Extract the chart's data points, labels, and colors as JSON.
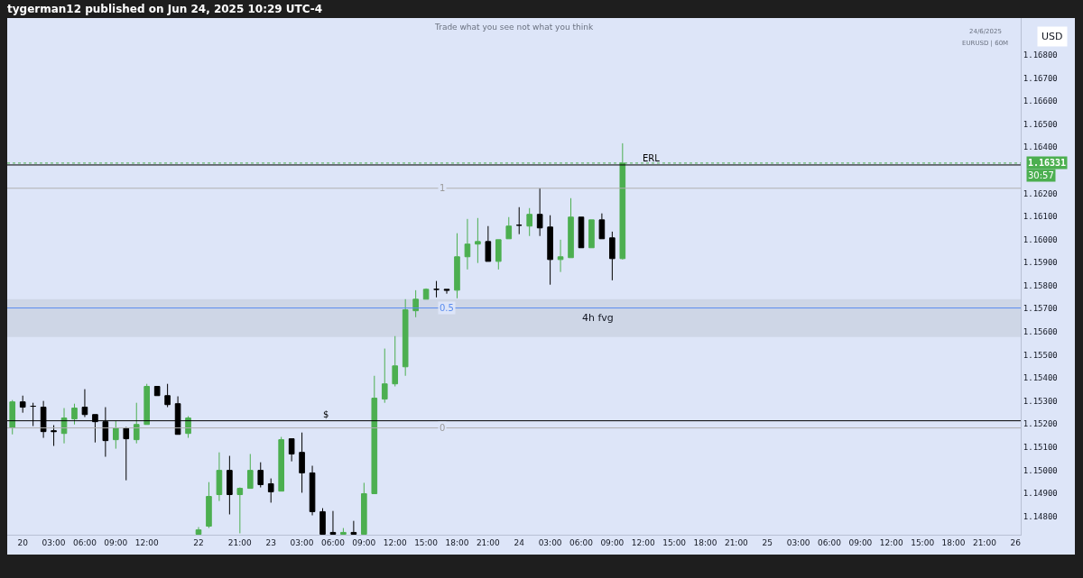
{
  "chart_data": {
    "type": "candlestick",
    "title": "tygerman12 published on Jun 24, 2025 10:29 UTC-4",
    "subtitle": "Trade what you see not what you think",
    "categories": [
      null,
      "20",
      null,
      null,
      "03:00",
      null,
      null,
      "06:00",
      null,
      null,
      "09:00",
      null,
      null,
      "12:00",
      null,
      null,
      null,
      null,
      "22",
      null,
      null,
      null,
      "21:00",
      null,
      null,
      "23",
      null,
      null,
      "03:00",
      null,
      null,
      "06:00",
      null,
      null,
      "09:00",
      null,
      null,
      "12:00",
      null,
      null,
      "15:00",
      null,
      null,
      "18:00",
      null,
      null,
      "21:00",
      null,
      null,
      "24",
      null,
      null,
      "03:00",
      null,
      null,
      "06:00",
      null,
      null,
      "09:00",
      null,
      null,
      "12:00",
      null,
      null,
      "15:00",
      null,
      null,
      "18:00",
      null,
      null,
      "21:00",
      null,
      null,
      "25",
      null,
      null,
      "03:00",
      null,
      null,
      "06:00",
      null,
      null,
      "09:00",
      null,
      null,
      "12:00",
      null,
      null,
      "15:00",
      null,
      null,
      "18:00",
      null,
      null,
      "21:00",
      null,
      null,
      "26"
    ],
    "ohlc": [
      [
        1.15183,
        1.15304,
        1.15155,
        1.15296
      ],
      [
        1.15296,
        1.15323,
        1.15249,
        1.15273
      ],
      [
        1.15277,
        1.15292,
        1.15191,
        1.15277
      ],
      [
        1.15273,
        1.153,
        1.1514,
        1.15167
      ],
      [
        1.15171,
        1.15195,
        1.15105,
        1.15167
      ],
      [
        1.15159,
        1.15269,
        1.15116,
        1.15226
      ],
      [
        1.15222,
        1.15288,
        1.15198,
        1.15269
      ],
      [
        1.15273,
        1.15351,
        1.1523,
        1.15241
      ],
      [
        1.15241,
        1.15241,
        1.1512,
        1.1521
      ],
      [
        1.1521,
        1.15273,
        1.15058,
        1.15128
      ],
      [
        1.15132,
        1.15214,
        1.15093,
        1.15183
      ],
      [
        1.15183,
        1.15187,
        1.14956,
        1.15136
      ],
      [
        1.15132,
        1.15292,
        1.15116,
        1.15198
      ],
      [
        1.15198,
        1.15374,
        1.15198,
        1.15363
      ],
      [
        1.15363,
        1.15363,
        1.15323,
        1.15323
      ],
      [
        1.15323,
        1.15374,
        1.15273,
        1.15284
      ],
      [
        1.15288,
        1.1532,
        1.15155,
        1.15155
      ],
      [
        1.15159,
        1.15234,
        1.1514,
        1.15226
      ],
      [
        1.14722,
        1.14753,
        1.14722,
        1.14741
      ],
      [
        1.14757,
        1.14948,
        1.14749,
        1.14886
      ],
      [
        1.14894,
        1.15077,
        1.14866,
        1.14999
      ],
      [
        1.14999,
        1.15062,
        1.14808,
        1.14894
      ],
      [
        1.14894,
        1.14925,
        1.14726,
        1.14921
      ],
      [
        1.14921,
        1.1507,
        1.14921,
        1.14999
      ],
      [
        1.14999,
        1.15034,
        1.14925,
        1.14937
      ],
      [
        1.14941,
        1.14964,
        1.14859,
        1.14906
      ],
      [
        1.14909,
        1.15144,
        1.14909,
        1.15132
      ],
      [
        1.15136,
        1.15136,
        1.15038,
        1.1507
      ],
      [
        1.15077,
        1.15163,
        1.14902,
        1.14988
      ],
      [
        1.14988,
        1.15019,
        1.14804,
        1.1482
      ],
      [
        1.1482,
        1.14835,
        1.14722,
        1.14722
      ],
      [
        1.1473,
        1.14823,
        1.14722,
        1.14722
      ],
      [
        1.14722,
        1.14749,
        1.14722,
        1.1473
      ],
      [
        1.1473,
        1.1478,
        1.14722,
        1.14722
      ],
      [
        1.14722,
        1.14945,
        1.14722,
        1.14898
      ],
      [
        1.14898,
        1.15409,
        1.14898,
        1.15312
      ],
      [
        1.15308,
        1.15527,
        1.15292,
        1.15374
      ],
      [
        1.15374,
        1.15581,
        1.15363,
        1.15452
      ],
      [
        1.15448,
        1.15741,
        1.15409,
        1.15695
      ],
      [
        1.15691,
        1.1578,
        1.15663,
        1.15741
      ],
      [
        1.15741,
        1.15788,
        1.15741,
        1.15784
      ],
      [
        1.15784,
        1.1582,
        1.15749,
        1.15784
      ],
      [
        1.15784,
        1.15784,
        1.15765,
        1.1578
      ],
      [
        1.1578,
        1.16027,
        1.15745,
        1.15925
      ],
      [
        1.15925,
        1.16089,
        1.1587,
        1.1598
      ],
      [
        1.1598,
        1.16093,
        1.15898,
        1.15991
      ],
      [
        1.15991,
        1.16058,
        1.15905,
        1.15905
      ],
      [
        1.15905,
        1.15999,
        1.1587,
        1.15999
      ],
      [
        1.16003,
        1.16097,
        1.16003,
        1.16058
      ],
      [
        1.16062,
        1.1614,
        1.16023,
        1.16062
      ],
      [
        1.16058,
        1.16136,
        1.16015,
        1.16109
      ],
      [
        1.16109,
        1.16222,
        1.16015,
        1.1605
      ],
      [
        1.16054,
        1.16105,
        1.15804,
        1.15913
      ],
      [
        1.15913,
        1.15999,
        1.15859,
        1.15925
      ],
      [
        1.15921,
        1.16179,
        1.15921,
        1.16097
      ],
      [
        1.16097,
        1.16097,
        1.15964,
        1.15964
      ],
      [
        1.15964,
        1.16085,
        1.15964,
        1.16085
      ],
      [
        1.16085,
        1.16113,
        1.16003,
        1.16003
      ],
      [
        1.16007,
        1.16034,
        1.15823,
        1.15917
      ],
      [
        1.15917,
        1.16417,
        1.15913,
        1.16331
      ],
      null,
      null,
      null,
      null,
      null,
      null,
      null,
      null,
      null,
      null,
      null,
      null,
      null,
      null,
      null,
      null,
      null,
      null,
      null,
      null,
      null,
      null,
      null,
      null,
      null,
      null,
      null,
      null,
      null,
      null,
      null,
      null,
      null,
      null,
      null,
      null,
      null,
      null
    ],
    "colors": [
      "#4caf50",
      "#000000",
      "#000000",
      "#000000",
      "#000000",
      "#4caf50",
      "#4caf50",
      "#000000",
      "#000000",
      "#000000",
      "#4caf50",
      "#000000",
      "#4caf50",
      "#4caf50",
      "#000000",
      "#000000",
      "#000000",
      "#4caf50",
      "#4caf50",
      "#4caf50",
      "#4caf50",
      "#000000",
      "#4caf50",
      "#4caf50",
      "#000000",
      "#000000",
      "#4caf50",
      "#000000",
      "#000000",
      "#000000",
      "#000000",
      "#000000",
      "#4caf50",
      "#000000",
      "#4caf50",
      "#4caf50",
      "#4caf50",
      "#4caf50",
      "#4caf50",
      "#4caf50",
      "#4caf50",
      "#000000",
      "#000000",
      "#4caf50",
      "#4caf50",
      "#4caf50",
      "#000000",
      "#4caf50",
      "#4caf50",
      "#000000",
      "#4caf50",
      "#000000",
      "#000000",
      "#4caf50",
      "#4caf50",
      "#000000",
      "#4caf50",
      "#000000",
      "#000000",
      "#4caf50",
      null,
      null,
      null,
      null,
      null,
      null,
      null,
      null,
      null,
      null,
      null,
      null,
      null,
      null,
      null,
      null,
      null,
      null,
      null,
      null,
      null,
      null,
      null,
      null,
      null,
      null,
      null,
      null,
      null,
      null,
      null,
      null,
      null,
      null,
      null,
      null,
      null,
      null
    ],
    "ylim": [
      1.1472,
      1.1696
    ],
    "yticks": [
      {
        "value": 1.148,
        "label": "1.14800"
      },
      {
        "value": 1.149,
        "label": "1.14900"
      },
      {
        "value": 1.15,
        "label": "1.15000"
      },
      {
        "value": 1.151,
        "label": "1.15100"
      },
      {
        "value": 1.152,
        "label": "1.15200"
      },
      {
        "value": 1.153,
        "label": "1.15300"
      },
      {
        "value": 1.154,
        "label": "1.15400"
      },
      {
        "value": 1.155,
        "label": "1.15500"
      },
      {
        "value": 1.156,
        "label": "1.15600"
      },
      {
        "value": 1.157,
        "label": "1.15700"
      },
      {
        "value": 1.158,
        "label": "1.15800"
      },
      {
        "value": 1.159,
        "label": "1.15900"
      },
      {
        "value": 1.16,
        "label": "1.16000"
      },
      {
        "value": 1.161,
        "label": "1.16100"
      },
      {
        "value": 1.162,
        "label": "1.16200"
      },
      {
        "value": 1.164,
        "label": "1.16400"
      },
      {
        "value": 1.165,
        "label": "1.16500"
      },
      {
        "value": 1.166,
        "label": "1.16600"
      },
      {
        "value": 1.167,
        "label": "1.16700"
      },
      {
        "value": 1.168,
        "label": "1.16800"
      }
    ],
    "grid": false,
    "ref_lines": [
      {
        "axis": "y",
        "value": 1.16323,
        "label": "ERL",
        "color": "#000000",
        "line_style": "solid"
      },
      {
        "axis": "y",
        "value": 1.16331,
        "label": "1.16331",
        "color": "#4caf50",
        "line_style": "dotted"
      },
      {
        "axis": "y",
        "value": 1.15214,
        "label": "$",
        "color": "#000000",
        "line_style": "solid"
      },
      {
        "axis": "y",
        "value": 1.16222,
        "color": "#b0b0b0",
        "line_style": "solid"
      },
      {
        "axis": "y",
        "value": 1.15703,
        "color": "#5b8def",
        "line_style": "solid"
      },
      {
        "axis": "y",
        "value": 1.15183,
        "color": "#b0b0b0",
        "line_style": "solid"
      }
    ],
    "bands": [
      {
        "axis": "y",
        "from": 1.15577,
        "to": 1.15741,
        "label": "4h fvg",
        "color": "#c5ccdb"
      }
    ],
    "annotations": [
      "24/6/2025",
      "EURUSD | 60M",
      "USD",
      "30:57",
      {
        "text": "1",
        "y": 1.16222
      },
      {
        "text": "0.5",
        "y": 1.15703
      },
      {
        "text": "0",
        "y": 1.15183
      }
    ]
  }
}
